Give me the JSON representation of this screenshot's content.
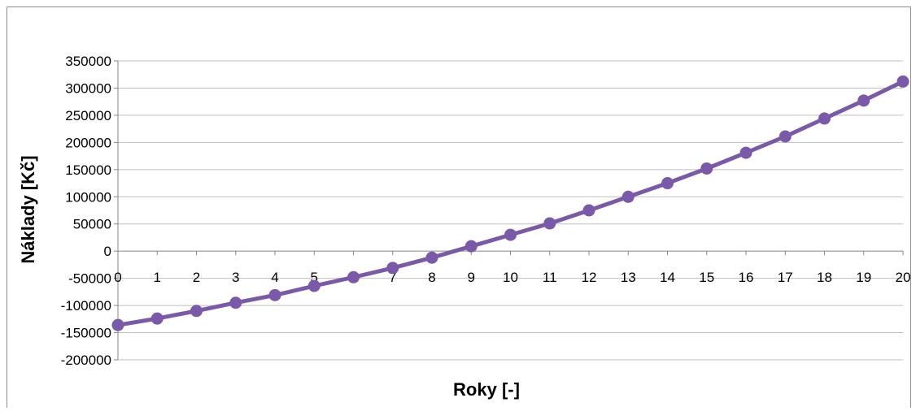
{
  "chart_data": {
    "type": "line",
    "title": "",
    "xlabel": "Roky [-]",
    "ylabel": "Náklady [Kč]",
    "x": [
      0,
      1,
      2,
      3,
      4,
      5,
      6,
      7,
      8,
      9,
      10,
      11,
      12,
      13,
      14,
      15,
      16,
      17,
      18,
      19,
      20
    ],
    "series": [
      {
        "name": "",
        "values": [
          -136000,
          -124000,
          -110000,
          -95000,
          -81000,
          -64000,
          -48000,
          -31000,
          -12000,
          9000,
          30000,
          51000,
          75000,
          100000,
          125000,
          152000,
          181000,
          211000,
          244000,
          277000,
          312000
        ]
      }
    ],
    "ylim": [
      -200000,
      350000
    ],
    "yticks": [
      -200000,
      -150000,
      -100000,
      -50000,
      0,
      50000,
      100000,
      150000,
      200000,
      250000,
      300000,
      350000
    ],
    "xlim": [
      0,
      20
    ],
    "grid": true,
    "legend": "none",
    "line_color": "#7a5aa8",
    "grid_color": "#bfbfbf",
    "axis_color": "#868686"
  }
}
